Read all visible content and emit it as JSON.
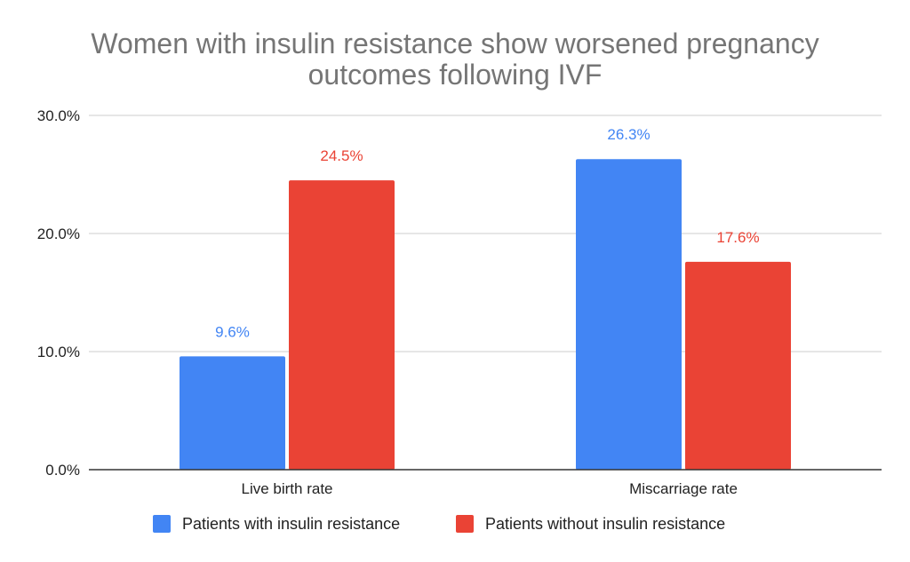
{
  "chart_data": {
    "type": "bar",
    "title": "Women with insulin resistance show worsened pregnancy outcomes following IVF",
    "title_lines": [
      "Women with insulin resistance show worsened pregnancy",
      "outcomes following IVF"
    ],
    "categories": [
      "Live birth rate",
      "Miscarriage rate"
    ],
    "series": [
      {
        "name": "Patients with insulin resistance",
        "color": "#4285f4",
        "values": [
          9.6,
          26.3
        ],
        "labels": [
          "9.6%",
          "26.3%"
        ]
      },
      {
        "name": "Patients without insulin resistance",
        "color": "#ea4335",
        "values": [
          24.5,
          17.6
        ],
        "labels": [
          "24.5%",
          "17.6%"
        ]
      }
    ],
    "ylim": [
      0,
      30
    ],
    "yticks": [
      {
        "value": 0,
        "label": "0.0%"
      },
      {
        "value": 10,
        "label": "10.0%"
      },
      {
        "value": 20,
        "label": "20.0%"
      },
      {
        "value": 30,
        "label": "30.0%"
      }
    ],
    "xlabel": "",
    "ylabel": "",
    "grid": true,
    "legend_position": "bottom",
    "gridline_color": "#cccccc",
    "axis_color": "#333333"
  }
}
